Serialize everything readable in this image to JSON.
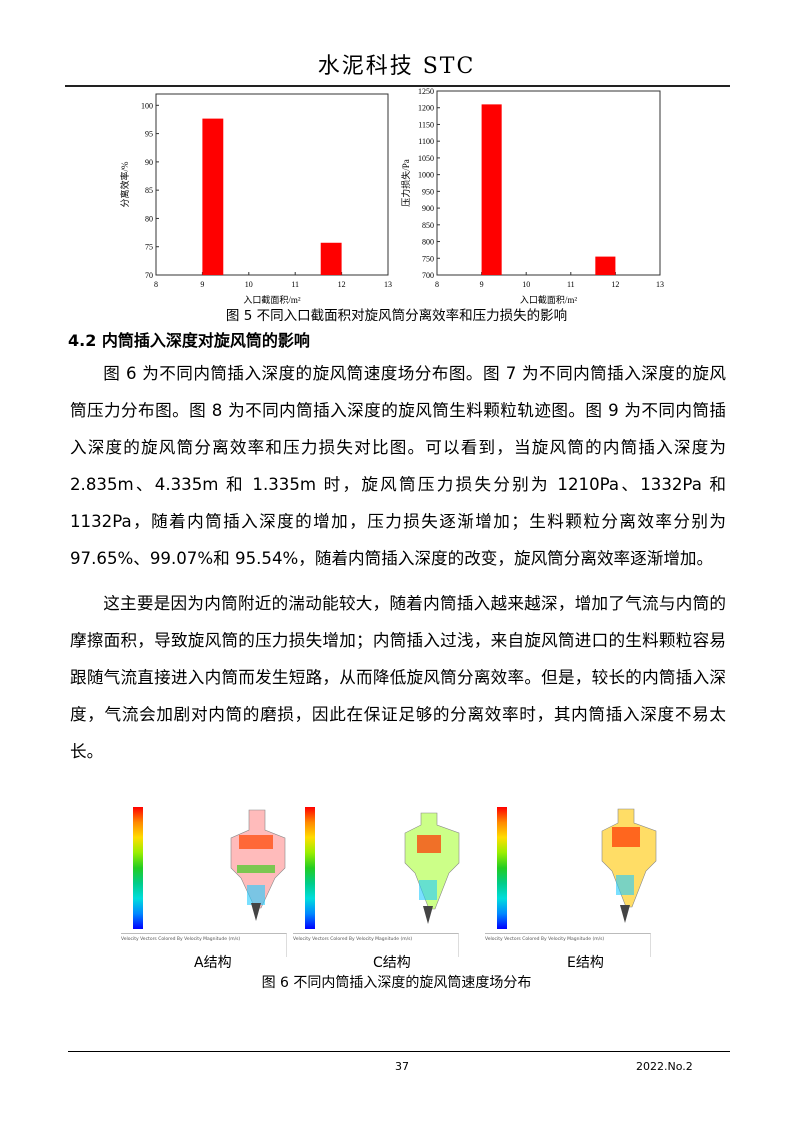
{
  "header": {
    "journal": "水泥科技 STC"
  },
  "chart_data": [
    {
      "type": "bar",
      "categories": [
        9,
        12
      ],
      "values": [
        97.65,
        75.7
      ],
      "xlabel": "入口截面积/m²",
      "ylabel": "分离效率/%",
      "xlim": [
        8,
        13
      ],
      "ylim": [
        70,
        102
      ],
      "xticks": [
        8,
        9,
        10,
        11,
        12,
        13
      ],
      "yticks": [
        70,
        75,
        80,
        85,
        90,
        95,
        100
      ],
      "bar_color": "#ff0000",
      "grid": false
    },
    {
      "type": "bar",
      "categories": [
        9,
        12
      ],
      "values": [
        1210,
        755
      ],
      "xlabel": "入口截面积/m²",
      "ylabel": "压力损失/Pa",
      "xlim": [
        8,
        13
      ],
      "ylim": [
        700,
        1250
      ],
      "xticks": [
        8,
        9,
        10,
        11,
        12,
        13
      ],
      "yticks": [
        700,
        750,
        800,
        850,
        900,
        950,
        1000,
        1050,
        1100,
        1150,
        1200,
        1250
      ],
      "bar_color": "#ff0000",
      "grid": false
    }
  ],
  "fig5_caption": "图 5  不同入口截面积对旋风筒分离效率和压力损失的影响",
  "section_title": "4.2  内筒插入深度对旋风筒的影响",
  "paragraphs": [
    "图 6 为不同内筒插入深度的旋风筒速度场分布图。图 7 为不同内筒插入深度的旋风筒压力分布图。图 8 为不同内筒插入深度的旋风筒生料颗粒轨迹图。图 9 为不同内筒插入深度的旋风筒分离效率和压力损失对比图。可以看到，当旋风筒的内筒插入深度为 2.835m、4.335m 和 1.335m 时，旋风筒压力损失分别为 1210Pa、1332Pa 和 1132Pa，随着内筒插入深度的增加，压力损失逐渐增加；生料颗粒分离效率分别为 97.65%、99.07%和 95.54%，随着内筒插入深度的改变，旋风筒分离效率逐渐增加。",
    "这主要是因为内筒附近的湍动能较大，随着内筒插入越来越深，增加了气流与内筒的摩擦面积，导致旋风筒的压力损失增加；内筒插入过浅，来自旋风筒进口的生料颗粒容易跟随气流直接进入内筒而发生短路，从而降低旋风筒分离效率。但是，较长的内筒插入深度，气流会加剧对内筒的磨损，因此在保证足够的分离效率时，其内筒插入深度不易太长。"
  ],
  "fig6": {
    "panels": [
      {
        "label": "A结构",
        "legend_title": "Velocity Vectors Colored By Velocity Magnitude (m/s)"
      },
      {
        "label": "C结构",
        "legend_title": "Velocity Vectors Colored By Velocity Magnitude (m/s)"
      },
      {
        "label": "E结构",
        "legend_title": "Velocity Vectors Colored By Velocity Magnitude (m/s)"
      }
    ],
    "caption": "图 6  不同内筒插入深度的旋风筒速度场分布"
  },
  "footer": {
    "page": "37",
    "issue": "2022.No.2"
  }
}
